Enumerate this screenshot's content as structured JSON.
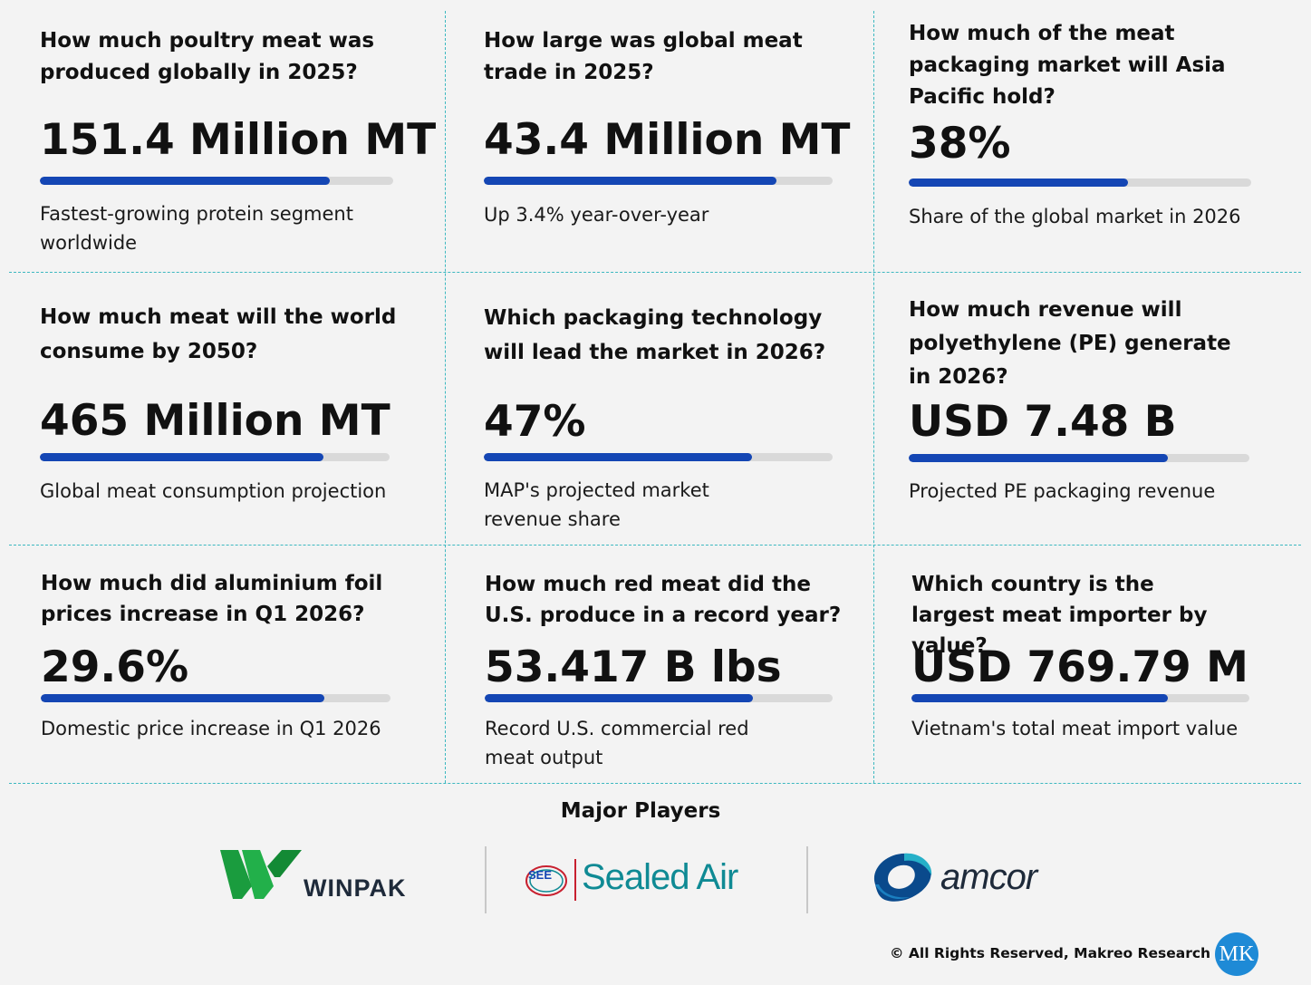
{
  "cards": [
    {
      "question": "How much poultry meat was produced globally in 2025?",
      "value": "151.4 Million MT",
      "bar_fill": 0.82,
      "description": "Fastest-growing protein segment worldwide"
    },
    {
      "question": "How large was global meat trade in 2025?",
      "value": "43.4 Million MT",
      "bar_fill": 0.84,
      "description": "Up 3.4% year-over-year"
    },
    {
      "question": "How much of the meat packaging market will Asia Pacific hold?",
      "value": "38%",
      "bar_fill": 0.64,
      "description": "Share of the global market in 2026"
    },
    {
      "question": "How much meat will the world consume by 2050?",
      "value": "465 Million MT",
      "bar_fill": 0.81,
      "description": "Global meat consumption projection"
    },
    {
      "question": "Which packaging technology will lead the market in 2026?",
      "value": "47%",
      "bar_fill": 0.77,
      "description": "MAP's projected market revenue share"
    },
    {
      "question": "How much revenue will polyethylene (PE) generate in 2026?",
      "value": "USD 7.48 B",
      "bar_fill": 0.76,
      "description": "Projected PE packaging revenue"
    },
    {
      "question": "How much did aluminium foil prices increase in Q1 2026?",
      "value": "29.6%",
      "bar_fill": 0.81,
      "description": "Domestic price increase in Q1 2026"
    },
    {
      "question": "How much red meat did the U.S. produce in a record year?",
      "value": "53.417 B lbs",
      "bar_fill": 0.77,
      "description": "Record U.S. commercial red meat output"
    },
    {
      "question": "Which country is the largest meat importer by value?",
      "value": "USD 769.79 M",
      "bar_fill": 0.76,
      "description": "Vietnam's total meat import value"
    }
  ],
  "players": {
    "title": "Major Players",
    "winpak": "WINPAK",
    "sealed_air_badge": "SEE",
    "sealed_air": "Sealed Air",
    "amcor": "amcor"
  },
  "footer": {
    "copyright": "© All Rights Reserved, Makreo Research",
    "logo_text": "MK"
  },
  "colors": {
    "accent": "#1446b4",
    "track": "#d9d9d9",
    "divider": "#3cb8c0",
    "winpak_green": "#1a9c3e",
    "sealed_air_teal": "#0f8a94",
    "amcor_blue": "#0a4a8c"
  }
}
